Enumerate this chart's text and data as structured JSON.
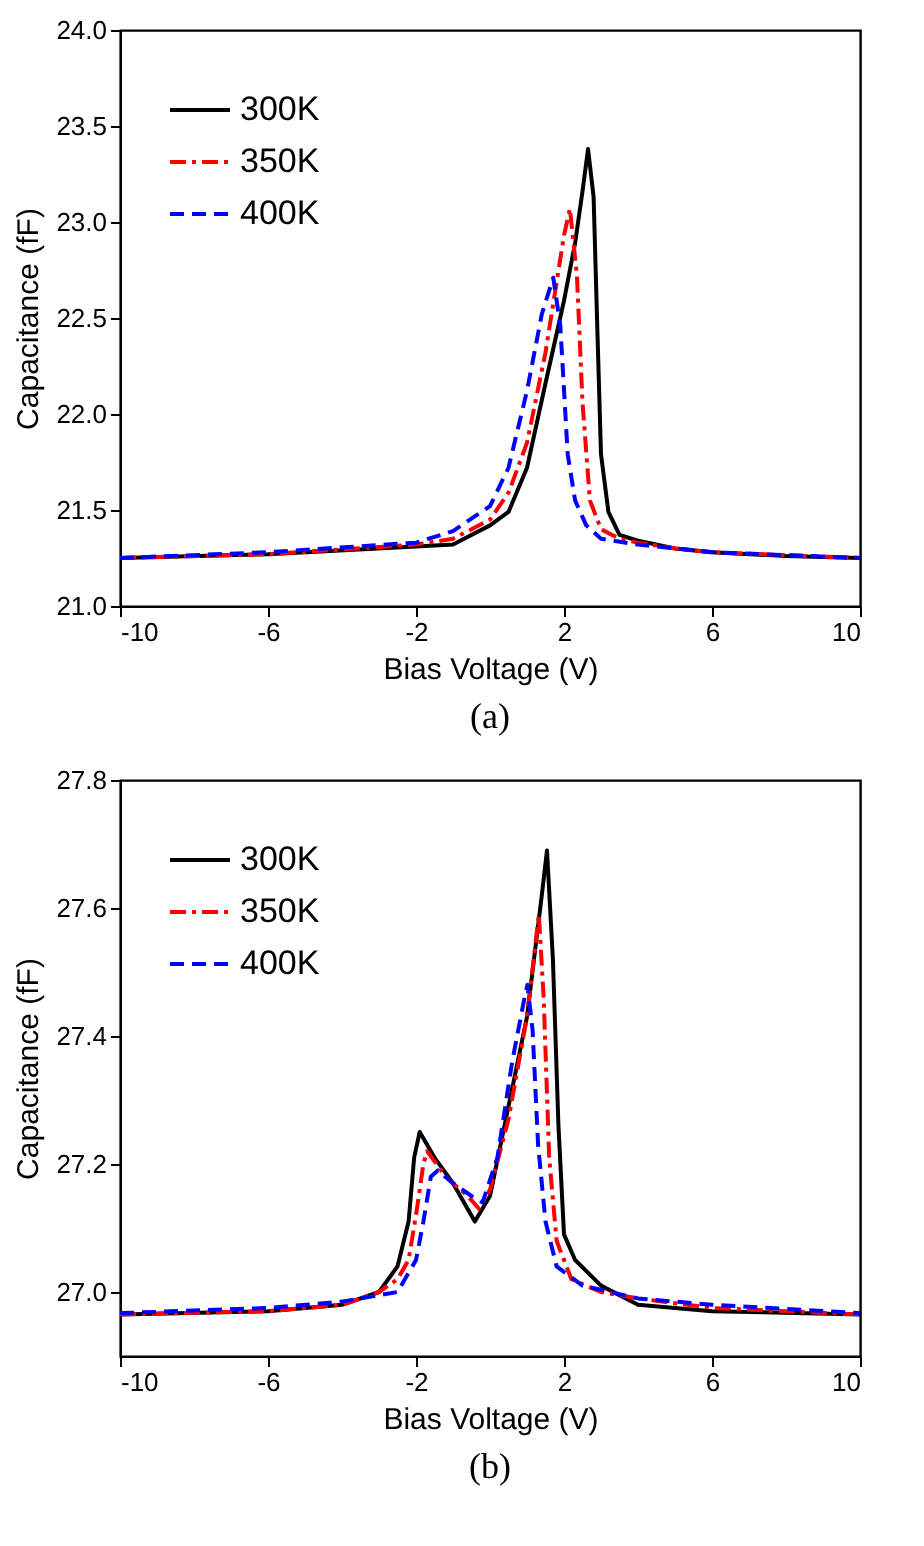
{
  "chart_data": [
    {
      "type": "line",
      "title": "(a)",
      "xlabel": "Bias Voltage (V)",
      "ylabel": "Capacitance (fF)",
      "xlim": [
        -10,
        10
      ],
      "xticks": [
        -10,
        -6,
        -2,
        2,
        6,
        10
      ],
      "ylim": [
        21,
        24
      ],
      "yticks": [
        {
          "value": 21,
          "label": "21.0"
        },
        {
          "value": 21.5,
          "label": "21.5"
        },
        {
          "value": 22,
          "label": "22.0"
        },
        {
          "value": 22.5,
          "label": "22.5"
        },
        {
          "value": 23,
          "label": "23.0"
        },
        {
          "value": 23.5,
          "label": "23.5"
        },
        {
          "value": 24,
          "label": "24.0"
        }
      ],
      "grid": false,
      "legend": "top left",
      "series": [
        {
          "name": "300K",
          "color": "#000000",
          "line_style": "solid",
          "x": [
            -10,
            -6,
            -2,
            -1,
            0,
            0.5,
            1,
            1.5,
            2,
            2.3,
            2.5,
            2.65,
            2.8,
            2.9,
            3,
            3.2,
            3.5,
            4,
            5,
            6,
            8,
            10
          ],
          "values": [
            21.25,
            21.27,
            21.31,
            21.32,
            21.42,
            21.49,
            21.72,
            22.16,
            22.59,
            22.89,
            23.16,
            23.38,
            23.13,
            22.45,
            21.79,
            21.49,
            21.37,
            21.34,
            21.3,
            21.28,
            21.26,
            21.25
          ]
        },
        {
          "name": "350K",
          "color": "#ff0000",
          "line_style": "dashdot",
          "x": [
            -10,
            -6,
            -2,
            -1,
            0,
            0.5,
            1,
            1.5,
            2,
            2.16,
            2.35,
            2.5,
            2.7,
            3,
            3.5,
            4,
            5,
            6,
            10
          ],
          "values": [
            21.25,
            21.27,
            21.32,
            21.35,
            21.45,
            21.59,
            21.85,
            22.32,
            22.93,
            23.07,
            22.72,
            22.06,
            21.55,
            21.4,
            21.35,
            21.33,
            21.3,
            21.28,
            21.25
          ]
        },
        {
          "name": "400K",
          "color": "#0000ff",
          "line_style": "dashed",
          "x": [
            -10,
            -6,
            -2,
            -1,
            0,
            0.5,
            1,
            1.4,
            1.71,
            1.9,
            2.1,
            2.3,
            2.6,
            3,
            4,
            5,
            6,
            10
          ],
          "values": [
            21.25,
            21.28,
            21.33,
            21.39,
            21.52,
            21.72,
            22.12,
            22.52,
            22.71,
            22.46,
            21.79,
            21.55,
            21.42,
            21.35,
            21.32,
            21.3,
            21.28,
            21.25
          ]
        }
      ]
    },
    {
      "type": "line",
      "title": "(b)",
      "xlabel": "Bias Voltage (V)",
      "ylabel": "Capacitance (fF)",
      "xlim": [
        -10,
        10
      ],
      "xticks": [
        -10,
        -6,
        -2,
        2,
        6,
        10
      ],
      "ylim": [
        26.9,
        27.8
      ],
      "yticks": [
        {
          "value": 27,
          "label": "27.0"
        },
        {
          "value": 27.2,
          "label": "27.2"
        },
        {
          "value": 27.4,
          "label": "27.4"
        },
        {
          "value": 27.6,
          "label": "27.6"
        },
        {
          "value": 27.8,
          "label": "27.8"
        }
      ],
      "grid": false,
      "legend": "top left",
      "series": [
        {
          "name": "300K",
          "color": "#000000",
          "line_style": "solid",
          "x": [
            -10,
            -6,
            -4,
            -3,
            -2.5,
            -2.2,
            -2.05,
            -1.9,
            -1.5,
            -1,
            -0.41,
            0,
            0.5,
            1,
            1.4,
            1.54,
            1.7,
            1.85,
            2,
            2.3,
            3,
            4,
            6,
            10
          ],
          "values": [
            26.965,
            26.97,
            26.98,
            27,
            27.04,
            27.11,
            27.21,
            27.25,
            27.21,
            27.17,
            27.11,
            27.15,
            27.29,
            27.43,
            27.62,
            27.69,
            27.52,
            27.26,
            27.09,
            27.05,
            27.01,
            26.98,
            26.97,
            26.965
          ]
        },
        {
          "name": "350K",
          "color": "#ff0000",
          "line_style": "dashdot",
          "x": [
            -10,
            -6,
            -4,
            -3,
            -2.5,
            -2.2,
            -2,
            -1.8,
            -1.7,
            -1.2,
            -0.6,
            -0.3,
            0,
            0.5,
            1,
            1.32,
            1.45,
            1.6,
            1.8,
            2.2,
            3,
            4,
            6,
            10
          ],
          "values": [
            26.965,
            26.97,
            26.98,
            27,
            27.02,
            27.05,
            27.12,
            27.2,
            27.22,
            27.18,
            27.15,
            27.13,
            27.16,
            27.27,
            27.43,
            27.59,
            27.46,
            27.21,
            27.08,
            27.02,
            27,
            26.99,
            26.975,
            26.965
          ]
        },
        {
          "name": "400K",
          "color": "#0000ff",
          "line_style": "dashed",
          "x": [
            -10,
            -6,
            -4,
            -3,
            -2.5,
            -2,
            -1.8,
            -1.6,
            -1.41,
            -1,
            -0.5,
            -0.2,
            0.2,
            0.6,
            0.9,
            1.01,
            1.15,
            1.3,
            1.5,
            1.8,
            2.5,
            4,
            6,
            10
          ],
          "values": [
            26.967,
            26.975,
            26.985,
            26.995,
            27,
            27.05,
            27.11,
            27.18,
            27.19,
            27.17,
            27.15,
            27.14,
            27.21,
            27.36,
            27.45,
            27.48,
            27.41,
            27.23,
            27.11,
            27.04,
            27.01,
            26.99,
            26.98,
            26.967
          ]
        }
      ]
    }
  ]
}
